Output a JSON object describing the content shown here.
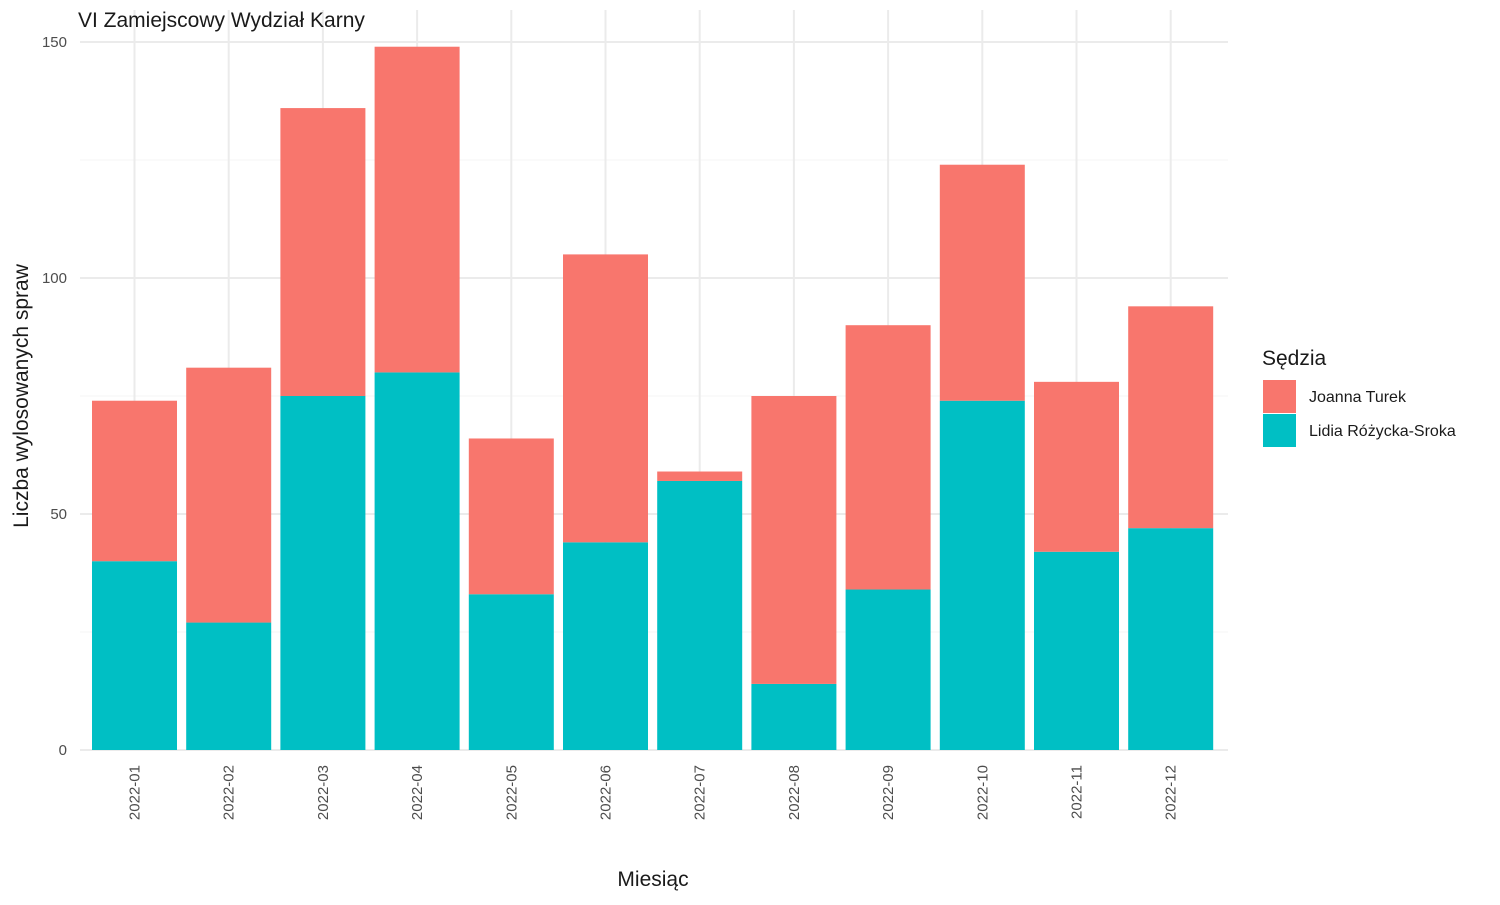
{
  "chart_data": {
    "type": "bar",
    "stacked": true,
    "title": "VI Zamiejscowy Wydział Karny",
    "xlabel": "Miesiąc",
    "ylabel": "Liczba wylosowanych spraw",
    "ylim": [
      0,
      150
    ],
    "yticks": [
      0,
      50,
      100,
      150
    ],
    "grid": true,
    "legend_position": "right",
    "legend_title": "Sędzia",
    "categories": [
      "2022-01",
      "2022-02",
      "2022-03",
      "2022-04",
      "2022-05",
      "2022-06",
      "2022-07",
      "2022-08",
      "2022-09",
      "2022-10",
      "2022-11",
      "2022-12"
    ],
    "series": [
      {
        "name": "Lidia Różycka-Sroka",
        "color": "#00BFC4",
        "values": [
          40,
          27,
          75,
          80,
          33,
          44,
          57,
          14,
          34,
          74,
          42,
          47
        ]
      },
      {
        "name": "Joanna Turek",
        "color": "#F8766D",
        "values": [
          34,
          54,
          61,
          69,
          33,
          61,
          2,
          61,
          56,
          50,
          36,
          47
        ]
      }
    ],
    "legend_order": [
      "Joanna Turek",
      "Lidia Różycka-Sroka"
    ]
  }
}
